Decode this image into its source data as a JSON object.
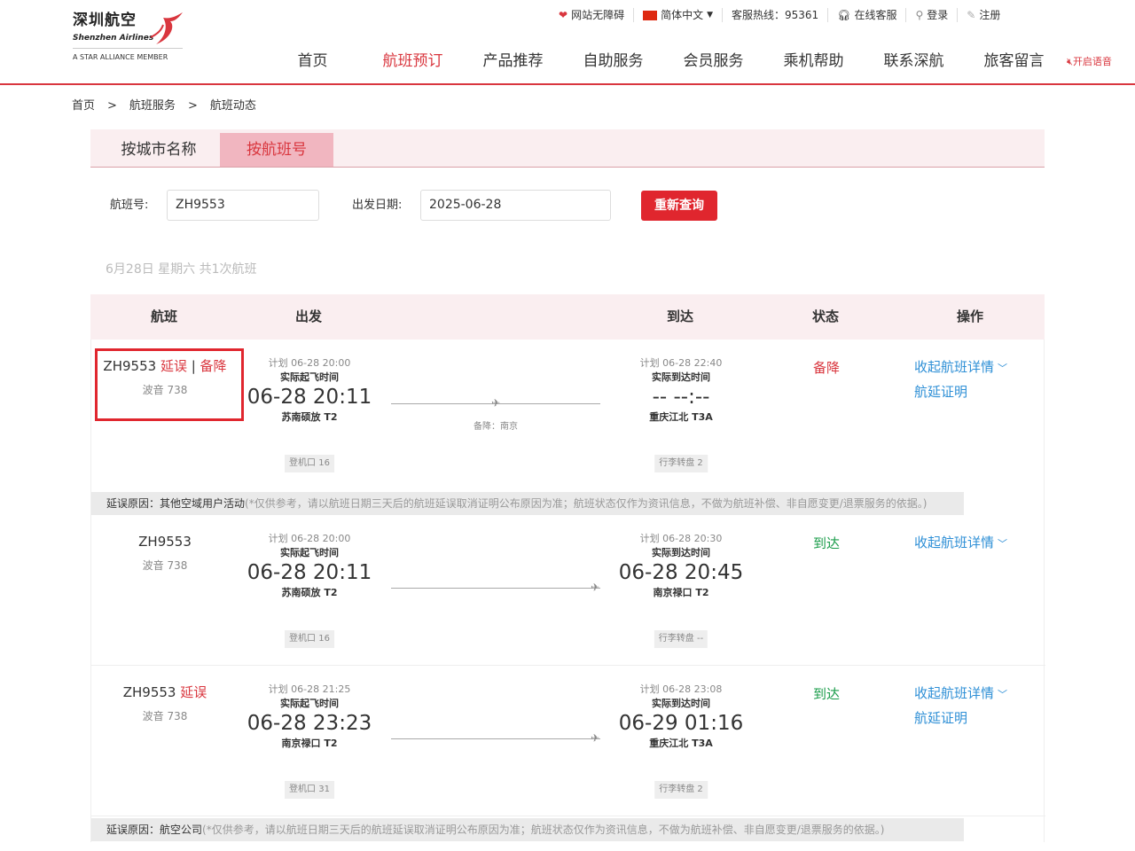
{
  "logo": {
    "cn": "深圳航空",
    "en": "Shenzhen Airlines",
    "alliance": "A STAR ALLIANCE MEMBER"
  },
  "topbar": {
    "accessibility": "网站无障碍",
    "language": "简体中文",
    "hotline": "客服热线：95361",
    "online_service": "在线客服",
    "login": "登录",
    "register": "注册"
  },
  "nav": [
    "首页",
    "航班预订",
    "产品推荐",
    "自助服务",
    "会员服务",
    "乘机帮助",
    "联系深航",
    "旅客留言"
  ],
  "nav_active": 1,
  "voice": "开启语音",
  "breadcrumb": [
    "首页",
    "航班服务",
    "航班动态"
  ],
  "breadcrumb_sep": ">",
  "tabs": [
    "按城市名称",
    "按航班号"
  ],
  "form": {
    "flight_label": "航班号:",
    "flight_value": "ZH9553",
    "date_label": "出发日期:",
    "date_value": "2025-06-28",
    "search_button": "重新查询"
  },
  "summary": "6月28日 星期六 共1次航班",
  "columns": [
    "航班",
    "出发",
    "到达",
    "状态",
    "操作"
  ],
  "colors": {
    "brand": "#d9363e",
    "link": "#2e8fd6",
    "arrived": "#1a9c4a"
  },
  "flights": [
    {
      "flight": "ZH9553",
      "tags": [
        "延误",
        "备降"
      ],
      "aircraft": "波音 738",
      "dep_plan": "计划 06-28 20:00",
      "dep_label": "实际起飞时间",
      "dep_time": "06-28 20:11",
      "dep_airport": "苏南硕放 T2",
      "gate": "登机口 16",
      "via": "备降：南京",
      "arr_plan": "计划 06-28 22:40",
      "arr_label": "实际到达时间",
      "arr_time": "-- --:--",
      "arr_airport": "重庆江北 T3A",
      "baggage": "行李转盘 2",
      "status": "备降",
      "status_color": "red",
      "ops": [
        "收起航班详情",
        "航延证明"
      ],
      "highlighted": true,
      "reason_label": "延误原因：其他空域用户活动",
      "reason_note": "(*仅供参考，请以航班日期三天后的航班延误取消证明公布原因为准；航班状态仅作为资讯信息，不做为航班补偿、非自愿变更/退票服务的依据。)"
    },
    {
      "flight": "ZH9553",
      "tags": [],
      "aircraft": "波音 738",
      "dep_plan": "计划 06-28 20:00",
      "dep_label": "实际起飞时间",
      "dep_time": "06-28 20:11",
      "dep_airport": "苏南硕放 T2",
      "gate": "登机口 16",
      "via": "",
      "arr_plan": "计划 06-28 20:30",
      "arr_label": "实际到达时间",
      "arr_time": "06-28 20:45",
      "arr_airport": "南京禄口 T2",
      "baggage": "行李转盘 --",
      "status": "到达",
      "status_color": "green",
      "ops": [
        "收起航班详情"
      ]
    },
    {
      "flight": "ZH9553",
      "tags": [
        "延误"
      ],
      "aircraft": "波音 738",
      "dep_plan": "计划 06-28 21:25",
      "dep_label": "实际起飞时间",
      "dep_time": "06-28 23:23",
      "dep_airport": "南京禄口 T2",
      "gate": "登机口 31",
      "via": "",
      "arr_plan": "计划 06-28 23:08",
      "arr_label": "实际到达时间",
      "arr_time": "06-29 01:16",
      "arr_airport": "重庆江北 T3A",
      "baggage": "行李转盘 2",
      "status": "到达",
      "status_color": "green",
      "ops": [
        "收起航班详情",
        "航延证明"
      ],
      "reason_label": "延误原因：航空公司",
      "reason_note": "(*仅供参考，请以航班日期三天后的航班延误取消证明公布原因为准；航班状态仅作为资讯信息，不做为航班补偿、非自愿变更/退票服务的依据。)"
    }
  ]
}
